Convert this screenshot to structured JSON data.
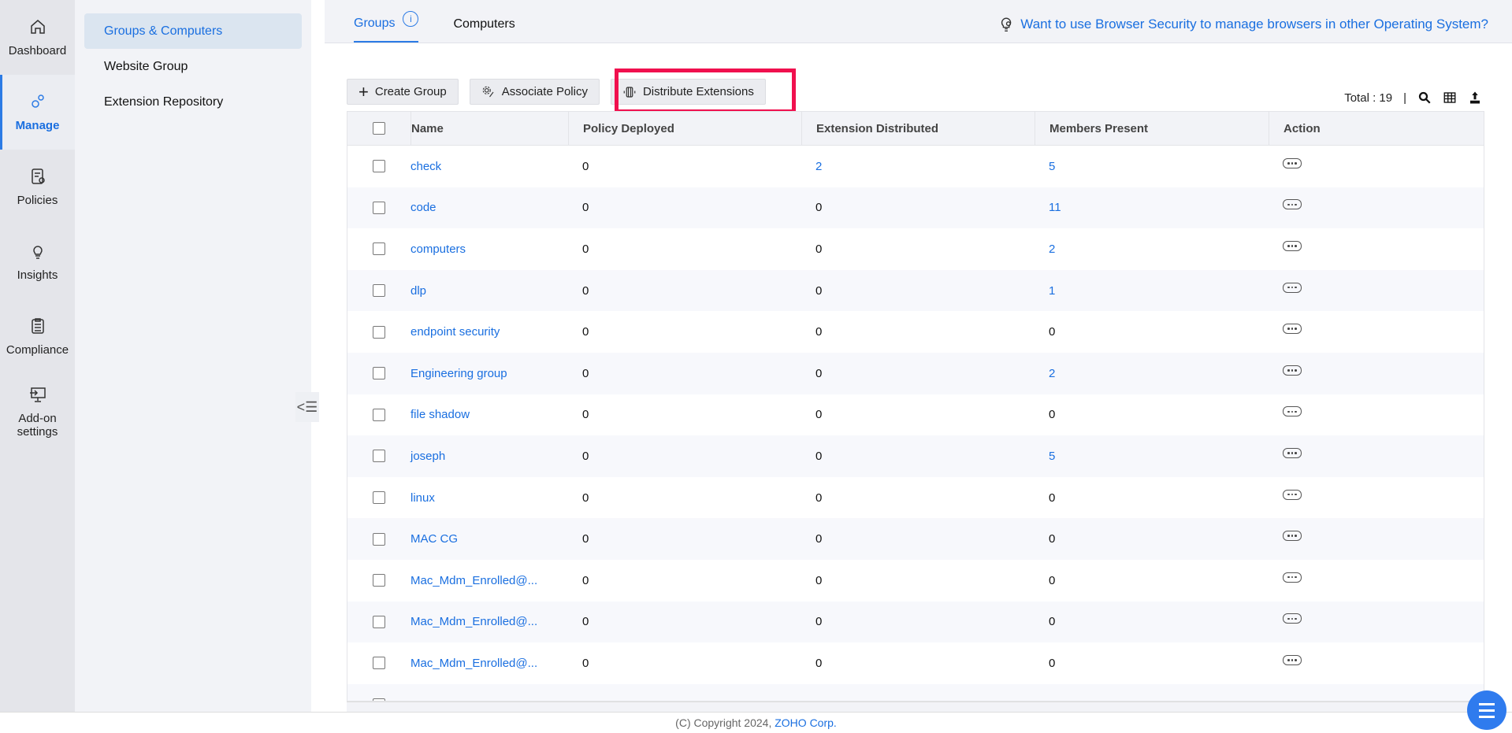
{
  "rail": [
    {
      "label": "Dashboard",
      "icon": "home-icon"
    },
    {
      "label": "Manage",
      "icon": "gears-icon",
      "active": true
    },
    {
      "label": "Policies",
      "icon": "policy-icon"
    },
    {
      "label": "Insights",
      "icon": "bulb-icon"
    },
    {
      "label": "Compliance",
      "icon": "clipboard-icon"
    },
    {
      "label": "Add-on settings",
      "icon": "monitor-import-icon"
    }
  ],
  "submenu": [
    "Groups & Computers",
    "Website Group",
    "Extension Repository"
  ],
  "tabs": {
    "groups": "Groups",
    "computers": "Computers",
    "info": "i"
  },
  "promo": "Want to use Browser Security to manage browsers in other Operating System?",
  "toolbar": {
    "create": "Create Group",
    "associate": "Associate Policy",
    "distribute": "Distribute Extensions"
  },
  "total": "Total : 19",
  "columns": [
    "Name",
    "Policy Deployed",
    "Extension Distributed",
    "Members Present",
    "Action"
  ],
  "rows": [
    [
      "check",
      "0",
      "2",
      "5"
    ],
    [
      "code",
      "0",
      "0",
      "11"
    ],
    [
      "computers",
      "0",
      "0",
      "2"
    ],
    [
      "dlp",
      "0",
      "0",
      "1"
    ],
    [
      "endpoint security",
      "0",
      "0",
      "0"
    ],
    [
      "Engineering group",
      "0",
      "0",
      "2"
    ],
    [
      "file shadow",
      "0",
      "0",
      "0"
    ],
    [
      "joseph",
      "0",
      "0",
      "5"
    ],
    [
      "linux",
      "0",
      "0",
      "0"
    ],
    [
      "MAC CG",
      "0",
      "0",
      "0"
    ],
    [
      "Mac_Mdm_Enrolled@...",
      "0",
      "0",
      "0"
    ],
    [
      "Mac_Mdm_Enrolled@...",
      "0",
      "0",
      "0"
    ],
    [
      "Mac_Mdm_Enrolled@...",
      "0",
      "0",
      "0"
    ]
  ],
  "footer": {
    "copyright": "(C) Copyright 2024, ",
    "company": "ZOHO Corp."
  },
  "colors": {
    "accent": "#1a6fe0",
    "highlight": "#f0104e"
  }
}
